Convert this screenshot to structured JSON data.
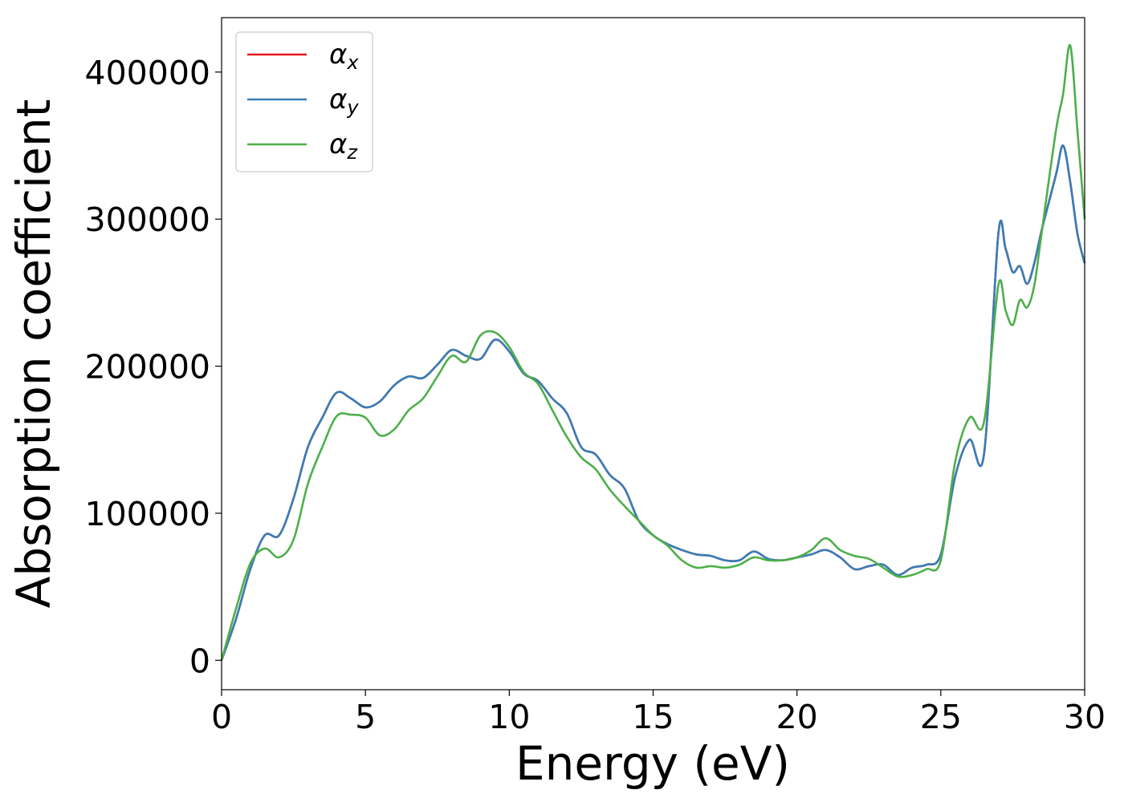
{
  "chart_data": {
    "type": "line",
    "title": "",
    "xlabel": "Energy (eV)",
    "ylabel": "Absorption coefficient",
    "xlim": [
      0,
      30
    ],
    "ylim": [
      -20000,
      437000
    ],
    "xticks": [
      0,
      5,
      10,
      15,
      20,
      25,
      30
    ],
    "yticks": [
      0,
      100000,
      200000,
      300000,
      400000
    ],
    "xtick_labels": [
      "0",
      "5",
      "10",
      "15",
      "20",
      "25",
      "30"
    ],
    "ytick_labels": [
      "0",
      "100000",
      "200000",
      "300000",
      "400000"
    ],
    "grid": false,
    "legend_position": "top-left",
    "x": [
      0,
      0.5,
      1,
      1.5,
      2,
      2.5,
      3,
      3.5,
      4,
      4.5,
      5,
      5.5,
      6,
      6.5,
      7,
      7.5,
      8,
      8.5,
      9,
      9.5,
      10,
      10.5,
      11,
      11.5,
      12,
      12.5,
      13,
      13.5,
      14,
      14.5,
      15,
      15.5,
      16,
      16.5,
      17,
      17.5,
      18,
      18.5,
      19,
      19.5,
      20,
      20.5,
      21,
      21.5,
      22,
      22.5,
      23,
      23.5,
      24,
      24.5,
      25,
      25.5,
      26,
      26.5,
      27,
      27.25,
      27.5,
      27.75,
      28,
      28.25,
      28.5,
      29,
      29.25,
      29.5,
      29.75,
      30
    ],
    "series": [
      {
        "name": "α_x",
        "base": "α",
        "subscript": "x",
        "color": "#e41a1c",
        "values": [
          0,
          28000,
          62000,
          85000,
          85000,
          110000,
          145000,
          165000,
          182000,
          178000,
          172000,
          176000,
          187000,
          193000,
          192000,
          201000,
          211000,
          207000,
          205000,
          218000,
          210000,
          195000,
          190000,
          178000,
          168000,
          145000,
          140000,
          126000,
          117000,
          95000,
          85000,
          79000,
          75000,
          72000,
          71000,
          68000,
          68000,
          74000,
          69000,
          68000,
          70000,
          72000,
          75000,
          70000,
          62000,
          64000,
          65000,
          58000,
          63000,
          65000,
          72000,
          125000,
          150000,
          140000,
          290000,
          280000,
          264000,
          268000,
          256000,
          270000,
          292000,
          330000,
          350000,
          325000,
          290000,
          270000
        ]
      },
      {
        "name": "α_y",
        "base": "α",
        "subscript": "y",
        "color": "#377eb8",
        "values": [
          0,
          28000,
          62000,
          85000,
          85000,
          110000,
          145000,
          165000,
          182000,
          178000,
          172000,
          176000,
          187000,
          193000,
          192000,
          201000,
          211000,
          207000,
          205000,
          218000,
          210000,
          195000,
          190000,
          178000,
          168000,
          145000,
          140000,
          126000,
          117000,
          95000,
          85000,
          79000,
          75000,
          72000,
          71000,
          68000,
          68000,
          74000,
          69000,
          68000,
          70000,
          72000,
          75000,
          70000,
          62000,
          64000,
          65000,
          58000,
          63000,
          65000,
          72000,
          125000,
          150000,
          140000,
          290000,
          280000,
          264000,
          268000,
          256000,
          270000,
          292000,
          330000,
          350000,
          325000,
          290000,
          270000
        ]
      },
      {
        "name": "α_z",
        "base": "α",
        "subscript": "z",
        "color": "#4daf4a",
        "values": [
          0,
          35000,
          66000,
          76000,
          70000,
          82000,
          120000,
          145000,
          166000,
          167000,
          165000,
          153000,
          157000,
          170000,
          178000,
          193000,
          207000,
          203000,
          221000,
          223000,
          213000,
          196000,
          188000,
          170000,
          152000,
          138000,
          130000,
          116000,
          105000,
          95000,
          85000,
          78000,
          68000,
          63000,
          64000,
          63000,
          65000,
          70000,
          68000,
          68000,
          70000,
          75000,
          83000,
          75000,
          71000,
          69000,
          63000,
          57000,
          58000,
          62000,
          68000,
          135000,
          165000,
          162000,
          255000,
          238000,
          228000,
          245000,
          240000,
          255000,
          290000,
          360000,
          385000,
          418000,
          360000,
          300000
        ]
      }
    ]
  }
}
